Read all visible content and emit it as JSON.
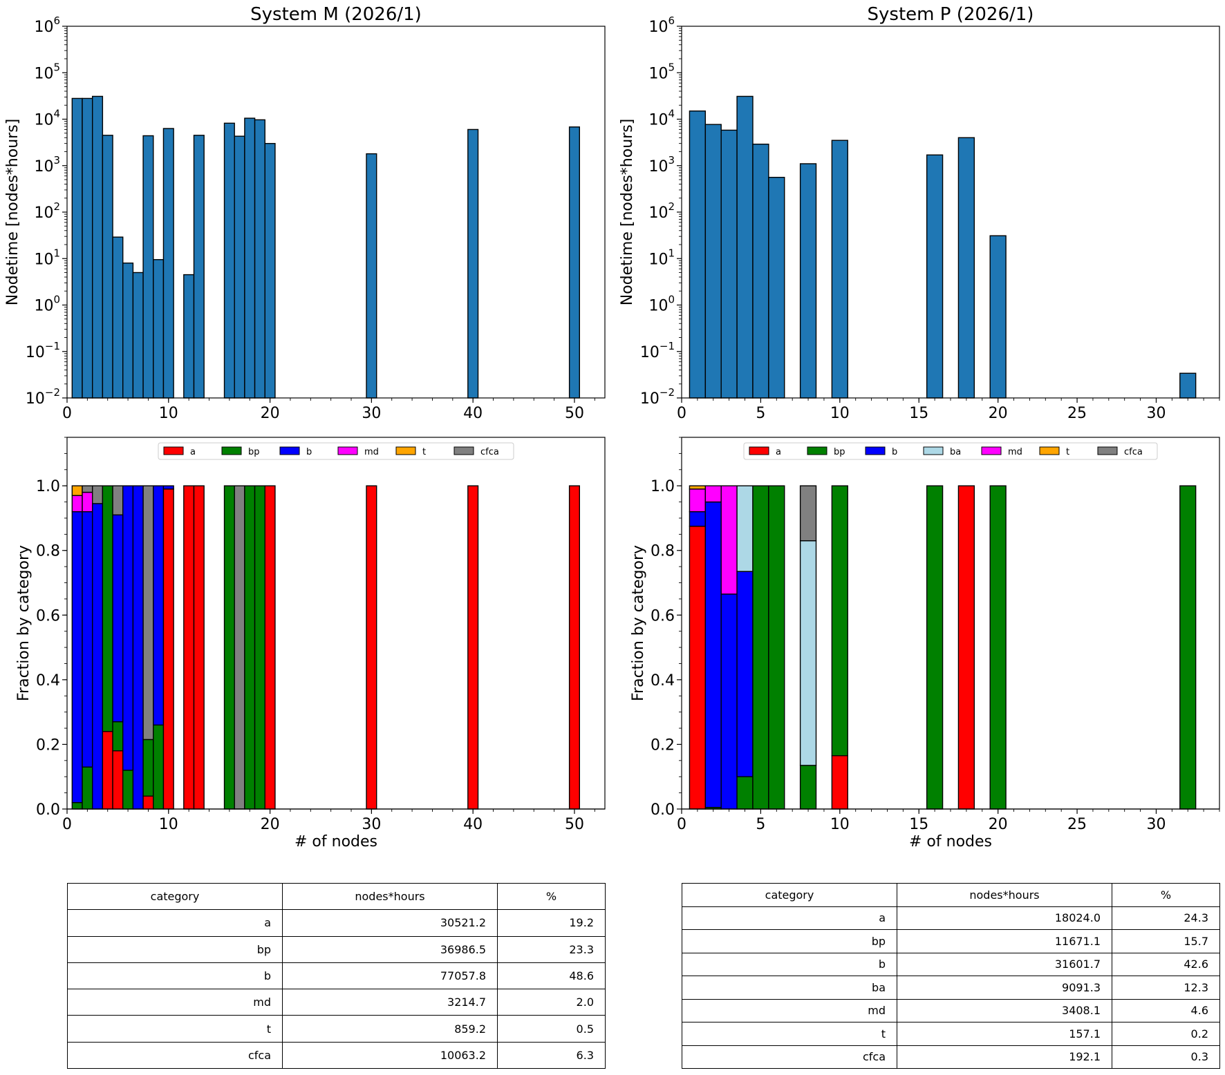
{
  "figure": {
    "colors": {
      "bar": "#1f77b4",
      "a": "#ff0000",
      "bp": "#008000",
      "b": "#0000ff",
      "ba": "#add8e6",
      "md": "#ff00ff",
      "t": "#ffa500",
      "cfca": "#808080"
    }
  },
  "chart_data": [
    {
      "id": "m-hist",
      "type": "bar",
      "title": "System M (2026/1)",
      "ylabel": "Nodetime [nodes*hours]",
      "xlabel": "",
      "yscale": "log",
      "xlim": [
        0,
        53
      ],
      "ylim": [
        0.01,
        1000000
      ],
      "xticks": [
        0,
        10,
        20,
        30,
        40,
        50
      ],
      "yticks_exp": [
        -2,
        -1,
        0,
        1,
        2,
        3,
        4,
        5,
        6
      ],
      "x": [
        1,
        2,
        3,
        4,
        5,
        6,
        7,
        8,
        9,
        10,
        12,
        13,
        16,
        17,
        18,
        19,
        20,
        30,
        40,
        50
      ],
      "values": [
        28000,
        28000,
        31000,
        4500,
        29,
        8,
        5,
        4400,
        9.5,
        6300,
        4.5,
        4500,
        8200,
        4300,
        10500,
        9700,
        3000,
        1800,
        6000,
        6800
      ]
    },
    {
      "id": "p-hist",
      "type": "bar",
      "title": "System P (2026/1)",
      "ylabel": "Nodetime [nodes*hours]",
      "xlabel": "",
      "yscale": "log",
      "xlim": [
        0,
        34
      ],
      "ylim": [
        0.01,
        1000000
      ],
      "xticks": [
        0,
        5,
        10,
        15,
        20,
        25,
        30
      ],
      "yticks_exp": [
        -2,
        -1,
        0,
        1,
        2,
        3,
        4,
        5,
        6
      ],
      "x": [
        1,
        2,
        3,
        4,
        5,
        6,
        8,
        10,
        16,
        18,
        20,
        32
      ],
      "values": [
        15000,
        7700,
        5800,
        31000,
        2900,
        560,
        1100,
        3500,
        1700,
        4000,
        31,
        0.034
      ]
    },
    {
      "id": "m-frac",
      "type": "bar",
      "stacked": true,
      "xlabel": "# of nodes",
      "ylabel": "Fraction by category",
      "xlim": [
        0,
        53
      ],
      "ylim": [
        0,
        1.15
      ],
      "xticks": [
        0,
        10,
        20,
        30,
        40,
        50
      ],
      "yticks": [
        0.0,
        0.2,
        0.4,
        0.6,
        0.8,
        1.0
      ],
      "yticklabels": [
        "0.0",
        "0.2",
        "0.4",
        "0.6",
        "0.8",
        "1.0"
      ],
      "legend": {
        "placement": "top",
        "entries": [
          "a",
          "bp",
          "b",
          "md",
          "t",
          "cfca"
        ]
      },
      "x": [
        1,
        2,
        3,
        4,
        5,
        6,
        7,
        8,
        9,
        10,
        12,
        13,
        16,
        17,
        18,
        19,
        20,
        30,
        40,
        50
      ],
      "series": [
        {
          "name": "a",
          "values": [
            0,
            0,
            0,
            0.24,
            0.18,
            0,
            0,
            0.04,
            0,
            0.99,
            1,
            1,
            0,
            0,
            0,
            0,
            1,
            1,
            1,
            1
          ]
        },
        {
          "name": "bp",
          "values": [
            0.02,
            0.13,
            0,
            0.76,
            0.09,
            0.12,
            0,
            0.175,
            0.26,
            0,
            0,
            0,
            1,
            0,
            1,
            1,
            0,
            0,
            0,
            0
          ]
        },
        {
          "name": "b",
          "values": [
            0.9,
            0.79,
            0.945,
            0,
            0.64,
            0.88,
            1,
            0,
            0.74,
            0.01,
            0,
            0,
            0,
            0,
            0,
            0,
            0,
            0,
            0,
            0
          ]
        },
        {
          "name": "md",
          "values": [
            0.05,
            0.06,
            0,
            0,
            0,
            0,
            0,
            0,
            0,
            0,
            0,
            0,
            0,
            0,
            0,
            0,
            0,
            0,
            0,
            0
          ]
        },
        {
          "name": "t",
          "values": [
            0.03,
            0,
            0,
            0,
            0,
            0,
            0,
            0,
            0,
            0,
            0,
            0,
            0,
            0,
            0,
            0,
            0,
            0,
            0,
            0
          ]
        },
        {
          "name": "cfca",
          "values": [
            0,
            0.02,
            0.055,
            0,
            0.09,
            0,
            0,
            0.785,
            0,
            0,
            0,
            0,
            0,
            1,
            0,
            0,
            0,
            0,
            0,
            0
          ]
        }
      ]
    },
    {
      "id": "p-frac",
      "type": "bar",
      "stacked": true,
      "xlabel": "# of nodes",
      "ylabel": "Fraction by category",
      "xlim": [
        0,
        34
      ],
      "ylim": [
        0,
        1.15
      ],
      "xticks": [
        0,
        5,
        10,
        15,
        20,
        25,
        30
      ],
      "yticks": [
        0.0,
        0.2,
        0.4,
        0.6,
        0.8,
        1.0
      ],
      "yticklabels": [
        "0.0",
        "0.2",
        "0.4",
        "0.6",
        "0.8",
        "1.0"
      ],
      "legend": {
        "placement": "top",
        "entries": [
          "a",
          "bp",
          "b",
          "ba",
          "md",
          "t",
          "cfca"
        ]
      },
      "x": [
        1,
        2,
        3,
        4,
        5,
        6,
        8,
        10,
        16,
        18,
        20,
        32
      ],
      "series": [
        {
          "name": "a",
          "values": [
            0.875,
            0,
            0,
            0,
            0,
            0,
            0,
            0.165,
            0,
            1,
            0,
            0
          ]
        },
        {
          "name": "bp",
          "values": [
            0,
            0.005,
            0,
            0.1,
            1,
            1,
            0.135,
            0.835,
            1,
            0,
            1,
            1
          ]
        },
        {
          "name": "b",
          "values": [
            0.045,
            0.945,
            0.665,
            0.635,
            0,
            0,
            0,
            0,
            0,
            0,
            0,
            0
          ]
        },
        {
          "name": "ba",
          "values": [
            0,
            0,
            0,
            0.265,
            0,
            0,
            0.695,
            0,
            0,
            0,
            0,
            0
          ]
        },
        {
          "name": "md",
          "values": [
            0.07,
            0.05,
            0.335,
            0,
            0,
            0,
            0,
            0,
            0,
            0,
            0,
            0
          ]
        },
        {
          "name": "t",
          "values": [
            0.01,
            0,
            0,
            0,
            0,
            0,
            0,
            0,
            0,
            0,
            0,
            0
          ]
        },
        {
          "name": "cfca",
          "values": [
            0,
            0,
            0,
            0,
            0,
            0,
            0.17,
            0,
            0,
            0,
            0,
            0
          ]
        }
      ]
    },
    {
      "id": "m-table",
      "type": "table",
      "headers": [
        "category",
        "nodes*hours",
        "%"
      ],
      "rows": [
        [
          "a",
          "30521.2",
          "19.2"
        ],
        [
          "bp",
          "36986.5",
          "23.3"
        ],
        [
          "b",
          "77057.8",
          "48.6"
        ],
        [
          "md",
          "3214.7",
          "2.0"
        ],
        [
          "t",
          "859.2",
          "0.5"
        ],
        [
          "cfca",
          "10063.2",
          "6.3"
        ]
      ]
    },
    {
      "id": "p-table",
      "type": "table",
      "headers": [
        "category",
        "nodes*hours",
        "%"
      ],
      "rows": [
        [
          "a",
          "18024.0",
          "24.3"
        ],
        [
          "bp",
          "11671.1",
          "15.7"
        ],
        [
          "b",
          "31601.7",
          "42.6"
        ],
        [
          "ba",
          "9091.3",
          "12.3"
        ],
        [
          "md",
          "3408.1",
          "4.6"
        ],
        [
          "t",
          "157.1",
          "0.2"
        ],
        [
          "cfca",
          "192.1",
          "0.3"
        ]
      ]
    }
  ]
}
